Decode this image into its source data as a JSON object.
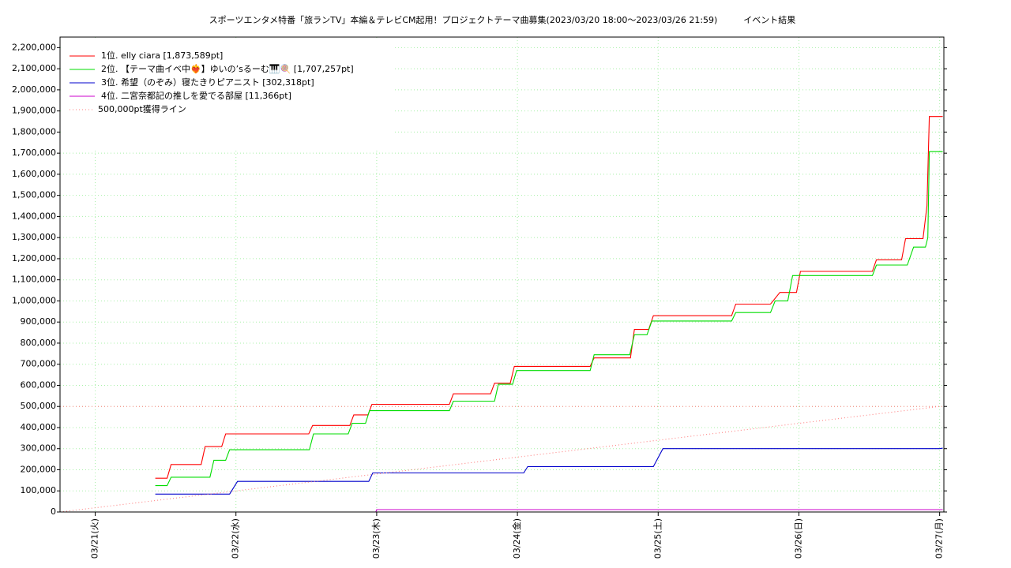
{
  "chart_data": {
    "type": "line",
    "title": "スポーツエンタメ特番「旅ランTV」本編＆テレビCM起用！プロジェクトテーマ曲募集(2023/03/20 18:00～2023/03/26 21:59)　　　イベント結果",
    "xlim": [
      20.75,
      27.03
    ],
    "xticks": [
      {
        "value": 21,
        "label": "03/21(火)"
      },
      {
        "value": 22,
        "label": "03/22(水)"
      },
      {
        "value": 23,
        "label": "03/23(木)"
      },
      {
        "value": 24,
        "label": "03/24(金)"
      },
      {
        "value": 25,
        "label": "03/25(土)"
      },
      {
        "value": 26,
        "label": "03/26(日)"
      },
      {
        "value": 27,
        "label": "03/27(月)"
      }
    ],
    "ylim": [
      0,
      2250000
    ],
    "yticks": [
      0,
      {
        "value": 100000,
        "label": "100,000"
      },
      {
        "value": 200000,
        "label": "200,000"
      },
      {
        "value": 300000,
        "label": "300,000"
      },
      {
        "value": 400000,
        "label": "400,000"
      },
      {
        "value": 500000,
        "label": "500,000"
      },
      {
        "value": 600000,
        "label": "600,000"
      },
      {
        "value": 700000,
        "label": "700,000"
      },
      {
        "value": 800000,
        "label": "800,000"
      },
      {
        "value": 900000,
        "label": "900,000"
      },
      {
        "value": 1000000,
        "label": "1,000,000"
      },
      {
        "value": 1100000,
        "label": "1,100,000"
      },
      {
        "value": 1200000,
        "label": "1,200,000"
      },
      {
        "value": 1300000,
        "label": "1,300,000"
      },
      {
        "value": 1400000,
        "label": "1,400,000"
      },
      {
        "value": 1500000,
        "label": "1,500,000"
      },
      {
        "value": 1600000,
        "label": "1,600,000"
      },
      {
        "value": 1700000,
        "label": "1,700,000"
      },
      {
        "value": 1800000,
        "label": "1,800,000"
      },
      {
        "value": 1900000,
        "label": "1,900,000"
      },
      {
        "value": 2000000,
        "label": "2,000,000"
      },
      {
        "value": 2100000,
        "label": "2,100,000"
      },
      {
        "value": 2200000,
        "label": "2,200,000"
      }
    ],
    "grid": true,
    "legend": "upper left",
    "target_line": 500000,
    "target_color": "#ff8080",
    "series": [
      {
        "name": "1位. elly ciara [1,873,589pt]",
        "color": "#ff0000",
        "x": [
          21.427,
          21.511,
          21.539,
          21.753,
          21.781,
          21.899,
          21.927,
          22.517,
          22.545,
          22.809,
          22.837,
          22.938,
          22.966,
          23.517,
          23.545,
          23.809,
          23.837,
          23.949,
          23.978,
          24.517,
          24.545,
          24.803,
          24.831,
          24.933,
          24.966,
          25.522,
          25.551,
          25.798,
          25.865,
          25.983,
          26.011,
          26.522,
          26.551,
          26.73,
          26.758,
          26.882,
          26.91,
          26.927,
          27.022
        ],
        "values": [
          160000,
          160000,
          225000,
          225000,
          310000,
          310000,
          370000,
          370000,
          410000,
          410000,
          460000,
          460000,
          510000,
          510000,
          560000,
          560000,
          610000,
          610000,
          690000,
          690000,
          730000,
          730000,
          865000,
          865000,
          930000,
          930000,
          985000,
          985000,
          1040000,
          1040000,
          1140000,
          1140000,
          1195000,
          1195000,
          1295000,
          1295000,
          1450000,
          1873589,
          1873589
        ]
      },
      {
        "name": "2位. 【テーマ曲イベ中❤️‍🔥】ゆいの’sるーむ🎹🍭 [1,707,257pt]",
        "color": "#00dd00",
        "x": [
          21.427,
          21.511,
          21.539,
          21.815,
          21.843,
          21.927,
          21.955,
          22.522,
          22.551,
          22.798,
          22.826,
          22.921,
          22.949,
          23.517,
          23.545,
          23.837,
          23.865,
          23.966,
          23.994,
          24.517,
          24.545,
          24.798,
          24.831,
          24.921,
          24.955,
          25.522,
          25.551,
          25.798,
          25.831,
          25.921,
          25.955,
          26.522,
          26.551,
          26.77,
          26.815,
          26.899,
          26.916,
          26.927,
          27.022
        ],
        "values": [
          125000,
          125000,
          165000,
          165000,
          245000,
          245000,
          295000,
          295000,
          370000,
          370000,
          420000,
          420000,
          480000,
          480000,
          525000,
          525000,
          605000,
          605000,
          670000,
          670000,
          745000,
          745000,
          840000,
          840000,
          905000,
          905000,
          945000,
          945000,
          1000000,
          1000000,
          1120000,
          1120000,
          1170000,
          1170000,
          1255000,
          1255000,
          1300000,
          1707257,
          1707257
        ]
      },
      {
        "name": "3位. 希望（のぞみ）寝たきりピアニスト [302,318pt]",
        "color": "#0000cc",
        "x": [
          21.427,
          21.955,
          22.011,
          22.944,
          22.972,
          24.045,
          24.073,
          24.966,
          25.034,
          27.0,
          27.022
        ],
        "values": [
          85000,
          85000,
          145000,
          145000,
          185000,
          185000,
          215000,
          215000,
          300000,
          300000,
          302318
        ]
      },
      {
        "name": "4位. 二宮奈都記の推しを愛でる部屋 [11,366pt]",
        "color": "#cc00cc",
        "x": [
          21.427,
          22.994,
          23.0,
          27.022
        ],
        "values": [
          0,
          0,
          11366,
          11366
        ]
      },
      {
        "name": "500,000pt獲得ライン",
        "color": "#ff8080",
        "style": "dotted",
        "x": [
          20.75,
          27.0
        ],
        "values": [
          0,
          500000
        ]
      }
    ]
  }
}
